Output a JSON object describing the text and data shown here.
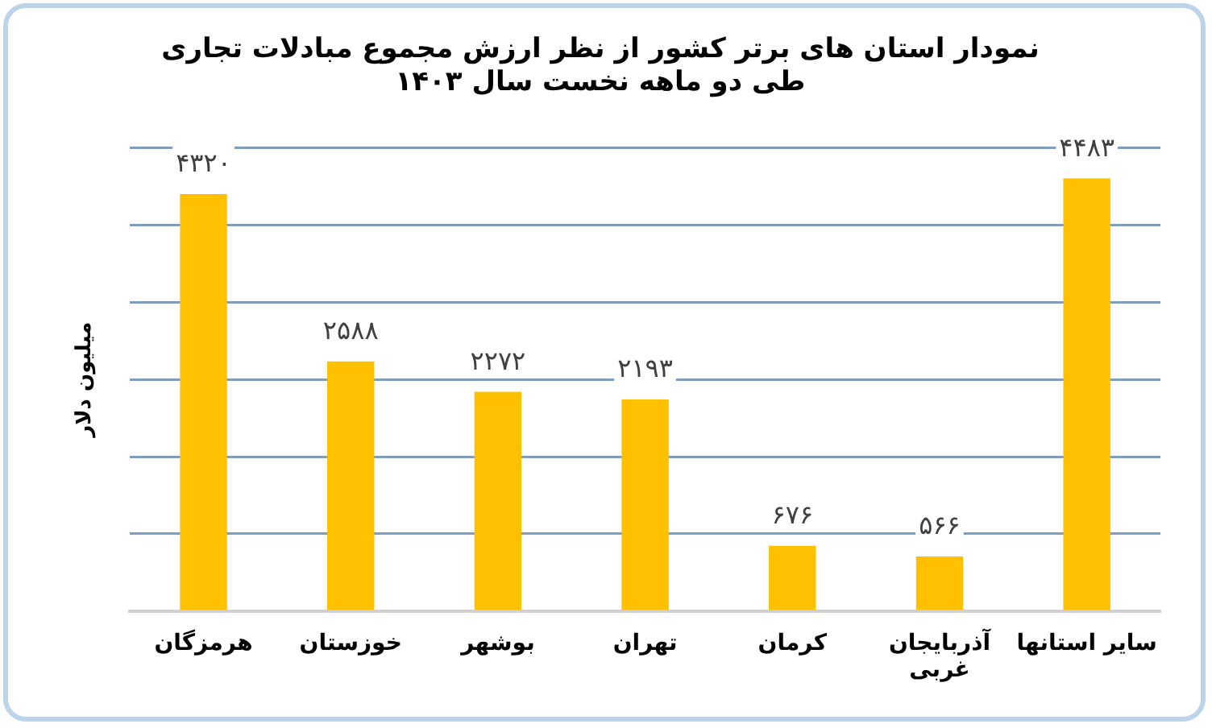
{
  "chart_data": {
    "type": "bar",
    "title": [
      "نمودار استان های برتر کشور از نظر ارزش مجموع مبادلات تجاری",
      "طی دو ماهه نخست سال ۱۴۰۳"
    ],
    "ylabel": "میلیون دلار",
    "categories": [
      "هرمزگان",
      "خوزستان",
      "بوشهر",
      "تهران",
      "کرمان",
      "آذربایجان غربی",
      "سایر استانها"
    ],
    "values": [
      4320,
      2588,
      2272,
      2193,
      676,
      566,
      4483
    ],
    "value_labels": [
      "۴۳۲۰",
      "۲۵۸۸",
      "۲۲۷۲",
      "۲۱۹۳",
      "۶۷۶",
      "۵۶۶",
      "۴۴۸۳"
    ],
    "color": "#ffc000",
    "ylim": [
      0,
      4800
    ],
    "yticks": [
      {
        "value": 0,
        "label": null
      },
      {
        "value": 800,
        "label": null
      },
      {
        "value": 1600,
        "label": null
      },
      {
        "value": 2400,
        "label": null
      },
      {
        "value": 3200,
        "label": null
      },
      {
        "value": 4000,
        "label": null
      },
      {
        "value": 4800,
        "label": null
      }
    ],
    "tick_labels": "x",
    "grid": "y",
    "legend": false
  }
}
